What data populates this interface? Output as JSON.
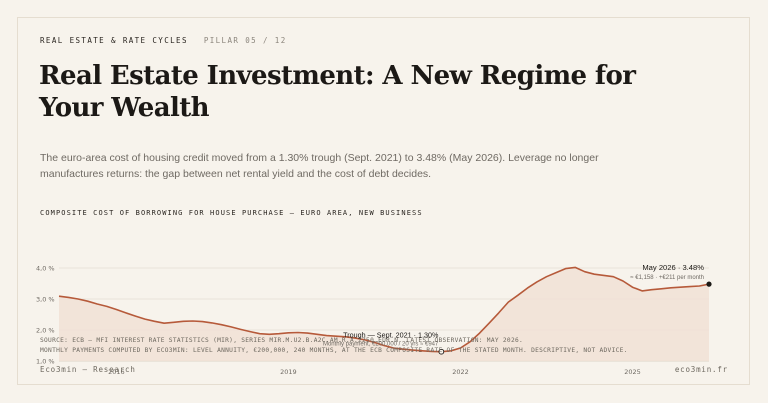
{
  "header": {
    "section": "REAL ESTATE & RATE CYCLES",
    "pillar": "PILLAR 05 / 12"
  },
  "title": "Real Estate Investment: A New Regime for Your Wealth",
  "lede": "The euro-area cost of housing credit moved from a 1.30% trough (Sept. 2021) to 3.48% (May 2026). Leverage no longer manufactures returns: the gap between net rental yield and the cost of debt decides.",
  "colors": {
    "line": "#b65a3a",
    "area": "#f1e1d6",
    "grid": "#dcd4c7",
    "text_dark": "#1c1916",
    "text_muted": "#6f6a63"
  },
  "chart_data": {
    "type": "area",
    "title": "COMPOSITE COST OF BORROWING FOR HOUSE PURCHASE — EURO AREA, NEW BUSINESS",
    "ylim": [
      1.0,
      4.0
    ],
    "y_ticks": [
      {
        "value": 4.0,
        "label": "4,0 %"
      },
      {
        "value": 3.0,
        "label": "3,0 %"
      },
      {
        "value": 2.0,
        "label": "2,0 %"
      },
      {
        "value": 1.0,
        "label": "1,0 %"
      }
    ],
    "x_ticks": [
      {
        "value": "2016-01",
        "label": "2016"
      },
      {
        "value": "2019-01",
        "label": "2019"
      },
      {
        "value": "2022-01",
        "label": "2022"
      },
      {
        "value": "2025-01",
        "label": "2025"
      }
    ],
    "x_range": [
      "2015-01",
      "2026-05"
    ],
    "grid": true,
    "points": [
      [
        "2015-01",
        3.09
      ],
      [
        "2015-03",
        3.05
      ],
      [
        "2015-05",
        3.0
      ],
      [
        "2015-07",
        2.93
      ],
      [
        "2015-09",
        2.84
      ],
      [
        "2015-11",
        2.76
      ],
      [
        "2016-01",
        2.66
      ],
      [
        "2016-03",
        2.55
      ],
      [
        "2016-05",
        2.45
      ],
      [
        "2016-07",
        2.35
      ],
      [
        "2016-09",
        2.28
      ],
      [
        "2016-11",
        2.22
      ],
      [
        "2017-01",
        2.25
      ],
      [
        "2017-03",
        2.28
      ],
      [
        "2017-05",
        2.29
      ],
      [
        "2017-07",
        2.27
      ],
      [
        "2017-09",
        2.23
      ],
      [
        "2017-11",
        2.17
      ],
      [
        "2018-01",
        2.1
      ],
      [
        "2018-03",
        2.02
      ],
      [
        "2018-05",
        1.95
      ],
      [
        "2018-07",
        1.88
      ],
      [
        "2018-09",
        1.86
      ],
      [
        "2018-11",
        1.88
      ],
      [
        "2019-01",
        1.91
      ],
      [
        "2019-03",
        1.92
      ],
      [
        "2019-05",
        1.9
      ],
      [
        "2019-07",
        1.86
      ],
      [
        "2019-09",
        1.82
      ],
      [
        "2019-11",
        1.8
      ],
      [
        "2020-01",
        1.78
      ],
      [
        "2020-03",
        1.74
      ],
      [
        "2020-05",
        1.68
      ],
      [
        "2020-07",
        1.6
      ],
      [
        "2020-09",
        1.5
      ],
      [
        "2020-11",
        1.42
      ],
      [
        "2021-01",
        1.38
      ],
      [
        "2021-03",
        1.35
      ],
      [
        "2021-05",
        1.33
      ],
      [
        "2021-07",
        1.31
      ],
      [
        "2021-09",
        1.3
      ],
      [
        "2021-11",
        1.33
      ],
      [
        "2022-01",
        1.42
      ],
      [
        "2022-03",
        1.62
      ],
      [
        "2022-05",
        1.9
      ],
      [
        "2022-07",
        2.22
      ],
      [
        "2022-09",
        2.55
      ],
      [
        "2022-11",
        2.9
      ],
      [
        "2023-01",
        3.12
      ],
      [
        "2023-03",
        3.35
      ],
      [
        "2023-05",
        3.55
      ],
      [
        "2023-07",
        3.72
      ],
      [
        "2023-09",
        3.85
      ],
      [
        "2023-11",
        3.98
      ],
      [
        "2024-01",
        4.02
      ],
      [
        "2024-03",
        3.88
      ],
      [
        "2024-05",
        3.8
      ],
      [
        "2024-07",
        3.76
      ],
      [
        "2024-09",
        3.72
      ],
      [
        "2024-11",
        3.58
      ],
      [
        "2025-01",
        3.38
      ],
      [
        "2025-03",
        3.26
      ],
      [
        "2025-05",
        3.3
      ],
      [
        "2025-07",
        3.33
      ],
      [
        "2025-09",
        3.36
      ],
      [
        "2025-11",
        3.38
      ],
      [
        "2026-01",
        3.4
      ],
      [
        "2026-03",
        3.42
      ],
      [
        "2026-05",
        3.48
      ]
    ],
    "annotations": {
      "trough": {
        "x": "2021-09",
        "y": 1.3,
        "label": "Trough — Sept. 2021 · 1.30%",
        "sub": "Monthly payment, €200,000 / 20 yrs ≈ €947"
      },
      "latest": {
        "x": "2026-05",
        "y": 3.48,
        "label": "May 2026 · 3.48%",
        "sub": "≈ €1,158 · +€211 per month"
      }
    }
  },
  "source": {
    "line1": "SOURCE: ECB — MFI INTEREST RATE STATISTICS (MIR), SERIES MIR.M.U2.B.A2C.AM.R.A.2250.EUR.N. LATEST OBSERVATION: MAY 2026.",
    "line2": "MONTHLY PAYMENTS COMPUTED BY ECO3MIN: LEVEL ANNUITY, €200,000, 240 MONTHS, AT THE ECB COMPOSITE RATE OF THE STATED MONTH. DESCRIPTIVE, NOT ADVICE."
  },
  "footer": {
    "left": "Eco3min — Research",
    "right": "eco3min.fr"
  }
}
